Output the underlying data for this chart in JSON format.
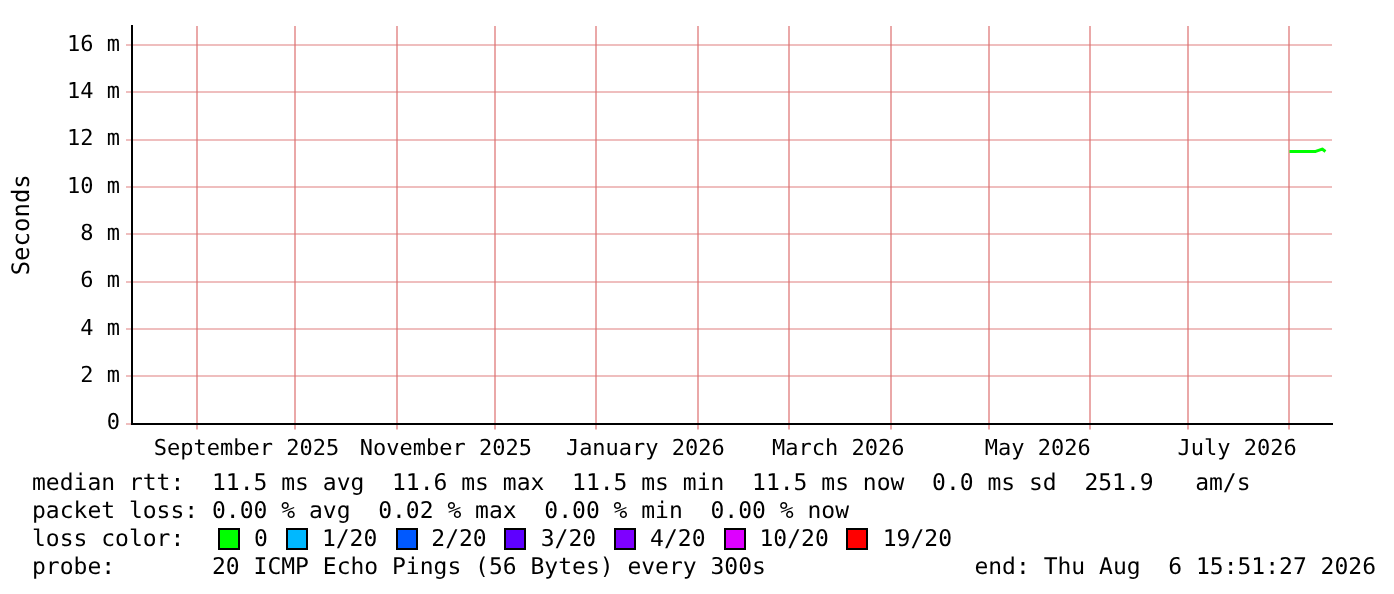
{
  "chart_data": {
    "type": "line",
    "ylabel": "Seconds",
    "legend_title": "loss color:",
    "legend": "bottom",
    "grid": true,
    "marker": "none",
    "line_style": "solid",
    "x": [
      "2026-08-01",
      "2026-08-03",
      "2026-08-05",
      "2026-08-07",
      "2026-08-09",
      "2026-08-11",
      "2026-08-12"
    ],
    "series": [
      {
        "name": "0",
        "color": "#00ff00",
        "values": [
          11.5,
          11.5,
          11.5,
          11.5,
          11.5,
          11.6,
          11.5
        ]
      },
      {
        "name": "1/20",
        "color": "#00b8ff",
        "values": [
          null,
          null,
          null,
          null,
          null,
          null,
          null
        ]
      },
      {
        "name": "2/20",
        "color": "#0059ff",
        "values": [
          null,
          null,
          null,
          null,
          null,
          null,
          null
        ]
      },
      {
        "name": "3/20",
        "color": "#5e00ff",
        "values": [
          null,
          null,
          null,
          null,
          null,
          null,
          null
        ]
      },
      {
        "name": "4/20",
        "color": "#7e00ff",
        "values": [
          null,
          null,
          null,
          null,
          null,
          null,
          null
        ]
      },
      {
        "name": "10/20",
        "color": "#dd00ff",
        "values": [
          null,
          null,
          null,
          null,
          null,
          null,
          null
        ]
      },
      {
        "name": "19/20",
        "color": "#ff0000",
        "values": [
          null,
          null,
          null,
          null,
          null,
          null,
          null
        ]
      }
    ],
    "xlim": [
      "2025-08-12",
      "2026-08-14"
    ],
    "xticks": [
      {
        "value": "2025-09-01",
        "label": null
      },
      {
        "value": "2025-09-16",
        "label": "September 2025"
      },
      {
        "value": "2025-10-01",
        "label": null
      },
      {
        "value": "2025-11-01",
        "label": null
      },
      {
        "value": "2025-11-16",
        "label": "November 2025"
      },
      {
        "value": "2025-12-01",
        "label": null
      },
      {
        "value": "2026-01-01",
        "label": null
      },
      {
        "value": "2026-01-16",
        "label": "January 2026"
      },
      {
        "value": "2026-02-01",
        "label": null
      },
      {
        "value": "2026-03-01",
        "label": null
      },
      {
        "value": "2026-03-16",
        "label": "March 2026"
      },
      {
        "value": "2026-04-01",
        "label": null
      },
      {
        "value": "2026-05-01",
        "label": null
      },
      {
        "value": "2026-05-16",
        "label": "May 2026"
      },
      {
        "value": "2026-06-01",
        "label": null
      },
      {
        "value": "2026-07-01",
        "label": null
      },
      {
        "value": "2026-07-16",
        "label": "July 2026"
      },
      {
        "value": "2026-08-01",
        "label": null
      }
    ],
    "ylim": [
      0,
      16.8
    ],
    "yticks": [
      0,
      {
        "value": 2,
        "label": "2 m"
      },
      {
        "value": 4,
        "label": "4 m"
      },
      {
        "value": 6,
        "label": "6 m"
      },
      {
        "value": 8,
        "label": "8 m"
      },
      {
        "value": 10,
        "label": "10 m"
      },
      {
        "value": 12,
        "label": "12 m"
      },
      {
        "value": 14,
        "label": "14 m"
      },
      {
        "value": 16,
        "label": "16 m"
      }
    ],
    "annotations": [
      "median rtt:  11.5 ms avg  11.6 ms max  11.5 ms min  11.5 ms now  0.0 ms sd  251.9   am/s",
      "packet loss: 0.00 % avg  0.02 % max  0.00 % min  0.00 % now",
      "probe:       20 ICMP Echo Pings (56 Bytes) every 300s",
      "end: Thu Aug  6 15:51:27 2026"
    ]
  }
}
